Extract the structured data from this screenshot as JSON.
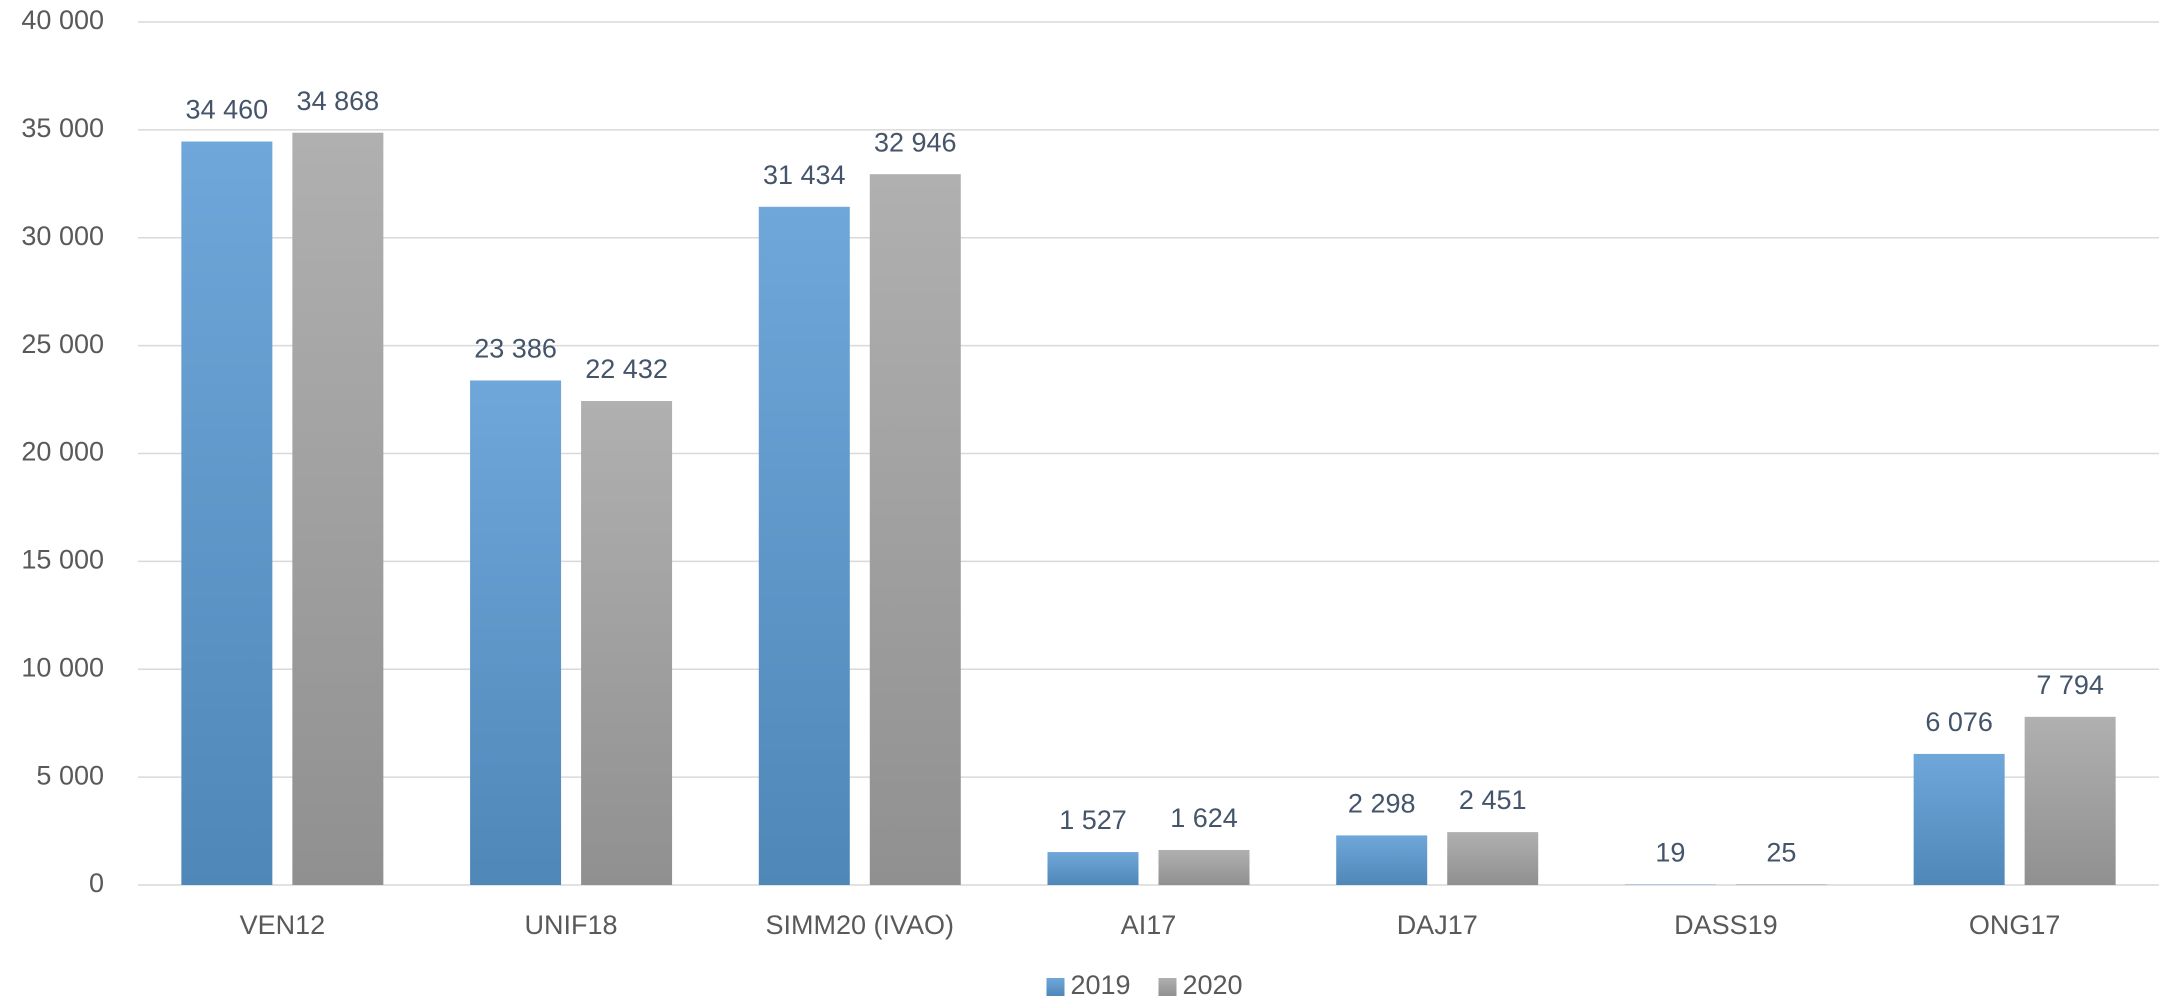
{
  "chart_data": {
    "type": "bar",
    "categories": [
      "VEN12",
      "UNIF18",
      "SIMM20 (IVAO)",
      "AI17",
      "DAJ17",
      "DASS19",
      "ONG17"
    ],
    "series": [
      {
        "name": "2019",
        "color": "#5b9bd5",
        "values": [
          34460,
          23386,
          31434,
          1527,
          2298,
          19,
          6076
        ],
        "value_labels": [
          "34 460",
          "23 386",
          "31 434",
          "1 527",
          "2 298",
          "19",
          "6 076"
        ]
      },
      {
        "name": "2020",
        "color": "#a5a5a5",
        "values": [
          34868,
          22432,
          32946,
          1624,
          2451,
          25,
          7794
        ],
        "value_labels": [
          "34 868",
          "22 432",
          "32 946",
          "1 624",
          "2 451",
          "25",
          "7 794"
        ]
      }
    ],
    "ylim": [
      0,
      40000
    ],
    "yticks": [
      0,
      {
        "value": 5000,
        "label": "5 000"
      },
      {
        "value": 10000,
        "label": "10 000"
      },
      {
        "value": 15000,
        "label": "15 000"
      },
      {
        "value": 20000,
        "label": "20 000"
      },
      {
        "value": 25000,
        "label": "25 000"
      },
      {
        "value": 30000,
        "label": "30 000"
      },
      {
        "value": 35000,
        "label": "35 000"
      },
      {
        "value": 40000,
        "label": "40 000"
      }
    ],
    "grid": true,
    "legend": "bottom"
  }
}
